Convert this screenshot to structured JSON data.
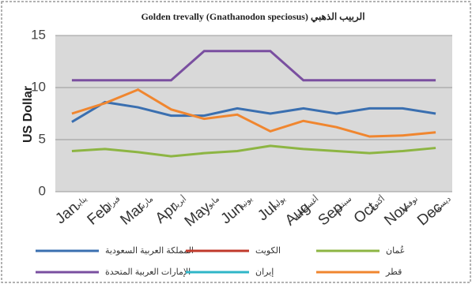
{
  "chart_data": {
    "type": "line",
    "title": "Golden trevally (Gnathanodon speciosus) الربيب الذهبي",
    "y_label": "US Dollar",
    "categories": [
      "Jan",
      "Feb",
      "Mar",
      "Apr",
      "May",
      "Jun",
      "Jul",
      "Aug",
      "Sep",
      "Oct",
      "Nov",
      "Dec"
    ],
    "categories_ar": [
      "يناير",
      "فبراير",
      "مارس",
      "أبريل",
      "مايو",
      "يونية",
      "يوليه",
      "أغسطس",
      "سبتمبر",
      "أكتوبر",
      "نوفمبر",
      "ديسمبر"
    ],
    "series": [
      {
        "name": "المملكة العربية السعودية",
        "color": "#3a6fb0",
        "values": [
          6.7,
          8.6,
          8.1,
          7.3,
          7.3,
          8.0,
          7.5,
          8.0,
          7.5,
          8.0,
          8.0,
          7.5
        ]
      },
      {
        "name": "الكويت",
        "color": "#c0392b",
        "values": [
          null,
          null,
          null,
          null,
          null,
          null,
          null,
          null,
          null,
          null,
          null,
          null
        ]
      },
      {
        "name": "عُمان",
        "color": "#8db543",
        "values": [
          3.9,
          4.1,
          3.8,
          3.4,
          3.7,
          3.9,
          4.4,
          4.1,
          3.9,
          3.7,
          3.9,
          4.2
        ]
      },
      {
        "name": "الإمارات العربية المتحدة",
        "color": "#7a4fa0",
        "values": [
          10.7,
          10.7,
          10.7,
          10.7,
          13.5,
          13.5,
          13.5,
          10.7,
          10.7,
          10.7,
          10.7,
          10.7
        ]
      },
      {
        "name": "إيران",
        "color": "#2fb6c8",
        "values": [
          null,
          null,
          null,
          null,
          null,
          null,
          null,
          null,
          null,
          null,
          null,
          null
        ]
      },
      {
        "name": "قطر",
        "color": "#f0862f",
        "values": [
          7.5,
          8.5,
          9.8,
          7.9,
          7.0,
          7.4,
          5.8,
          6.8,
          6.2,
          5.3,
          5.4,
          5.7
        ]
      }
    ],
    "ylim": [
      0,
      15
    ],
    "yticks": [
      0,
      5,
      10,
      15
    ],
    "grid": true
  }
}
